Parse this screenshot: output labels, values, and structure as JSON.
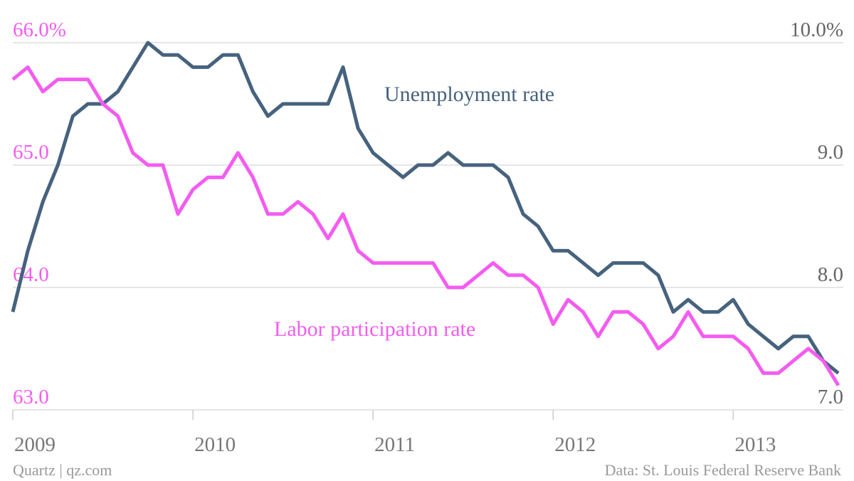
{
  "chart_data": {
    "type": "line",
    "categories": [
      "2009",
      null,
      null,
      null,
      null,
      null,
      null,
      null,
      null,
      null,
      null,
      null,
      "2010",
      null,
      null,
      null,
      null,
      null,
      null,
      null,
      null,
      null,
      null,
      null,
      "2011",
      null,
      null,
      null,
      null,
      null,
      null,
      null,
      null,
      null,
      null,
      null,
      "2012",
      null,
      null,
      null,
      null,
      null,
      null,
      null,
      null,
      null,
      null,
      null,
      "2013",
      null,
      null,
      null,
      null,
      null,
      null,
      null
    ],
    "series": [
      {
        "name": "Unemployment rate",
        "color": "#46627e",
        "axis": "y2",
        "values": [
          7.8,
          8.3,
          8.7,
          9.0,
          9.4,
          9.5,
          9.5,
          9.6,
          9.8,
          10.0,
          9.9,
          9.9,
          9.8,
          9.8,
          9.9,
          9.9,
          9.6,
          9.4,
          9.5,
          9.5,
          9.5,
          9.5,
          9.8,
          9.3,
          9.1,
          9.0,
          8.9,
          9.0,
          9.0,
          9.1,
          9.0,
          9.0,
          9.0,
          8.9,
          8.6,
          8.5,
          8.3,
          8.3,
          8.2,
          8.1,
          8.2,
          8.2,
          8.2,
          8.1,
          7.8,
          7.9,
          7.8,
          7.8,
          7.9,
          7.7,
          7.6,
          7.5,
          7.6,
          7.6,
          7.4,
          7.3
        ]
      },
      {
        "name": "Labor participation rate",
        "color": "#f45cf0",
        "values": [
          65.7,
          65.8,
          65.6,
          65.7,
          65.7,
          65.7,
          65.5,
          65.4,
          65.1,
          65.0,
          65.0,
          64.6,
          64.8,
          64.9,
          64.9,
          65.1,
          64.9,
          64.6,
          64.6,
          64.7,
          64.6,
          64.4,
          64.6,
          64.3,
          64.2,
          64.2,
          64.2,
          64.2,
          64.2,
          64.0,
          64.0,
          64.1,
          64.2,
          64.1,
          64.1,
          64.0,
          63.7,
          63.9,
          63.8,
          63.6,
          63.8,
          63.8,
          63.7,
          63.5,
          63.6,
          63.8,
          63.6,
          63.6,
          63.6,
          63.5,
          63.3,
          63.3,
          63.4,
          63.5,
          63.4,
          63.2
        ]
      }
    ],
    "ylim": [
      63,
      66
    ],
    "yticks": [
      {
        "value": 66,
        "label": "66.0%"
      },
      {
        "value": 65,
        "label": "65.0"
      },
      {
        "value": 64,
        "label": "64.0"
      },
      {
        "value": 63,
        "label": "63.0"
      }
    ],
    "y2lim": [
      7,
      10
    ],
    "y2ticks": [
      {
        "value": 10,
        "label": "10.0%"
      },
      {
        "value": 9,
        "label": "9.0"
      },
      {
        "value": 8,
        "label": "8.0"
      },
      {
        "value": 7,
        "label": "7.0"
      }
    ],
    "grid": true,
    "source_left": "Quartz | qz.com",
    "source_right": "Data: St. Louis Federal Reserve Bank"
  }
}
